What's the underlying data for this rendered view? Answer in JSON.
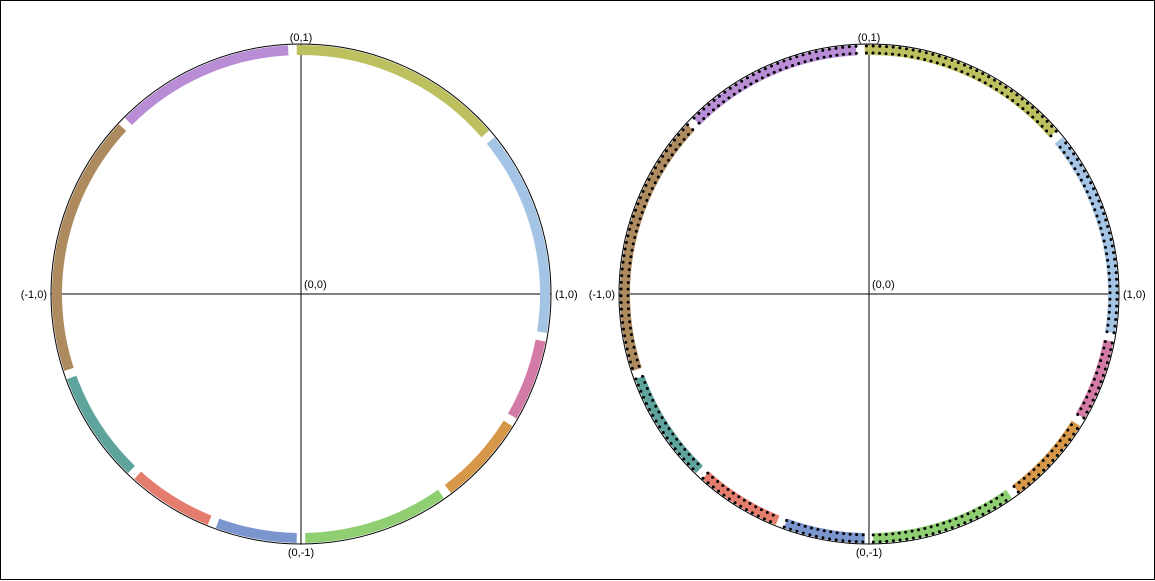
{
  "diagrams": [
    {
      "axis_labels": {
        "top": "(0,1)",
        "bottom": "(0,-1)",
        "left": "(-1,0)",
        "right": "(1,0)",
        "origin": "(0,0)"
      },
      "show_points": false
    },
    {
      "axis_labels": {
        "top": "(0,1)",
        "bottom": "(0,-1)",
        "left": "(-1,0)",
        "right": "(1,0)",
        "origin": "(0,0)"
      },
      "show_points": true
    }
  ],
  "arcs": [
    {
      "color": "#a3c4e4",
      "start_deg": -9,
      "end_deg": 39
    },
    {
      "color": "#bcc05e",
      "start_deg": 41,
      "end_deg": 91
    },
    {
      "color": "#b98dd6",
      "start_deg": 93,
      "end_deg": 135
    },
    {
      "color": "#ae8a5f",
      "start_deg": 137,
      "end_deg": 198
    },
    {
      "color": "#5ea39c",
      "start_deg": 200,
      "end_deg": 226
    },
    {
      "color": "#e47d6e",
      "start_deg": 228,
      "end_deg": 248
    },
    {
      "color": "#7b96cf",
      "start_deg": 250,
      "end_deg": 269
    },
    {
      "color": "#8fcf72",
      "start_deg": 271,
      "end_deg": 305
    },
    {
      "color": "#d69848",
      "start_deg": 307,
      "end_deg": 328
    },
    {
      "color": "#d37ba6",
      "start_deg": 330,
      "end_deg": 349
    }
  ]
}
